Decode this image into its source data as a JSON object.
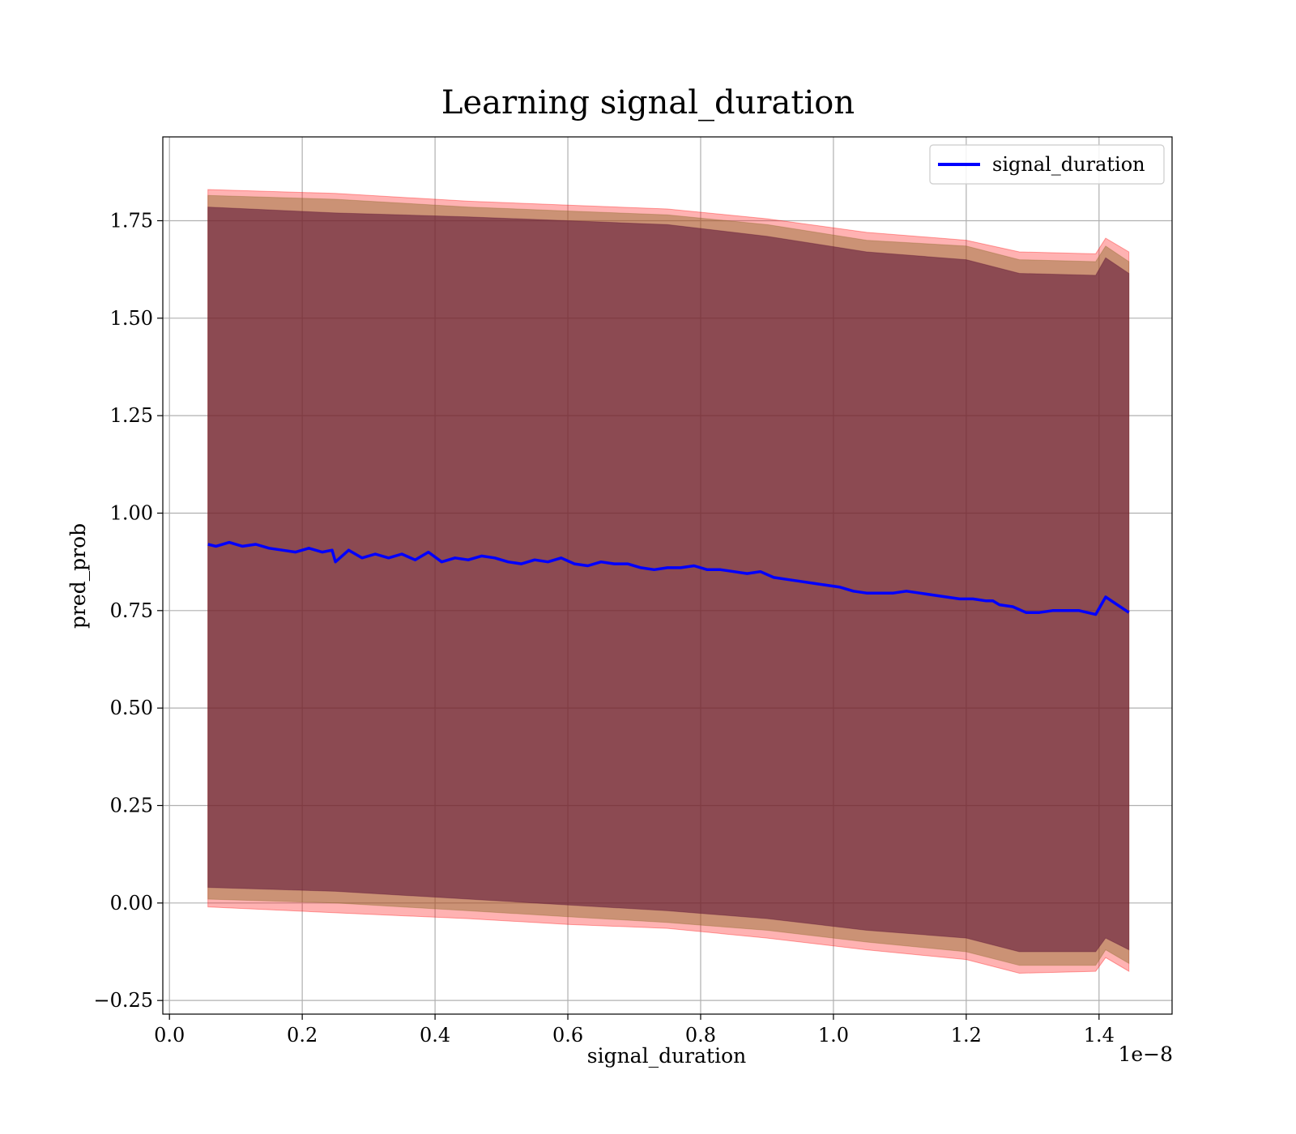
{
  "chart_data": {
    "type": "line",
    "title": "Learning signal_duration",
    "xlabel": "signal_duration",
    "ylabel": "pred_prob",
    "x_offset_label": "1e−8",
    "xlim": [
      -0.01,
      1.51
    ],
    "ylim": [
      -0.285,
      1.965
    ],
    "x_ticks": [
      0.0,
      0.2,
      0.4,
      0.6,
      0.8,
      1.0,
      1.2,
      1.4
    ],
    "x_tick_labels": [
      "0.0",
      "0.2",
      "0.4",
      "0.6",
      "0.8",
      "1.0",
      "1.2",
      "1.4"
    ],
    "y_ticks": [
      -0.25,
      0.0,
      0.25,
      0.5,
      0.75,
      1.0,
      1.25,
      1.5,
      1.75
    ],
    "y_tick_labels": [
      "−0.25",
      "0.00",
      "0.25",
      "0.50",
      "0.75",
      "1.00",
      "1.25",
      "1.50",
      "1.75"
    ],
    "grid": true,
    "legend_position": "top-right",
    "colors": {
      "line": "#0000ff",
      "outer_band": "#ff0000",
      "middle_band": "#8b6b2a",
      "inner_band": "#5a0f35",
      "grid": "#b0b0b0"
    },
    "series": [
      {
        "name": "signal_duration",
        "x": [
          0.058,
          0.07,
          0.09,
          0.11,
          0.13,
          0.15,
          0.17,
          0.19,
          0.21,
          0.23,
          0.245,
          0.25,
          0.27,
          0.29,
          0.31,
          0.33,
          0.35,
          0.37,
          0.39,
          0.41,
          0.43,
          0.45,
          0.47,
          0.49,
          0.51,
          0.53,
          0.55,
          0.57,
          0.59,
          0.61,
          0.63,
          0.65,
          0.67,
          0.69,
          0.71,
          0.73,
          0.75,
          0.77,
          0.79,
          0.81,
          0.83,
          0.85,
          0.87,
          0.89,
          0.91,
          0.93,
          0.95,
          0.97,
          0.99,
          1.01,
          1.03,
          1.05,
          1.07,
          1.09,
          1.11,
          1.13,
          1.15,
          1.17,
          1.19,
          1.21,
          1.23,
          1.24,
          1.25,
          1.27,
          1.29,
          1.31,
          1.33,
          1.35,
          1.37,
          1.395,
          1.41,
          1.445
        ],
        "y": [
          0.92,
          0.915,
          0.925,
          0.915,
          0.92,
          0.91,
          0.905,
          0.9,
          0.91,
          0.9,
          0.905,
          0.875,
          0.905,
          0.885,
          0.895,
          0.885,
          0.895,
          0.88,
          0.9,
          0.875,
          0.885,
          0.88,
          0.89,
          0.885,
          0.875,
          0.87,
          0.88,
          0.875,
          0.885,
          0.87,
          0.865,
          0.875,
          0.87,
          0.87,
          0.86,
          0.855,
          0.86,
          0.86,
          0.865,
          0.855,
          0.855,
          0.85,
          0.845,
          0.85,
          0.835,
          0.83,
          0.825,
          0.82,
          0.815,
          0.81,
          0.8,
          0.795,
          0.795,
          0.795,
          0.8,
          0.795,
          0.79,
          0.785,
          0.78,
          0.78,
          0.775,
          0.775,
          0.765,
          0.76,
          0.745,
          0.745,
          0.75,
          0.75,
          0.75,
          0.74,
          0.785,
          0.745
        ]
      }
    ],
    "bands": [
      {
        "x": [
          0.058,
          0.25,
          0.45,
          0.6,
          0.75,
          0.9,
          1.05,
          1.2,
          1.28,
          1.395,
          1.41,
          1.445
        ],
        "upper": [
          1.83,
          1.82,
          1.8,
          1.79,
          1.78,
          1.755,
          1.72,
          1.7,
          1.67,
          1.665,
          1.705,
          1.67
        ],
        "lower": [
          -0.01,
          -0.025,
          -0.04,
          -0.055,
          -0.065,
          -0.09,
          -0.12,
          -0.145,
          -0.18,
          -0.175,
          -0.14,
          -0.175
        ]
      },
      {
        "x": [
          0.058,
          0.25,
          0.45,
          0.6,
          0.75,
          0.9,
          1.05,
          1.2,
          1.28,
          1.395,
          1.41,
          1.445
        ],
        "upper": [
          1.815,
          1.805,
          1.785,
          1.775,
          1.765,
          1.74,
          1.7,
          1.685,
          1.65,
          1.645,
          1.685,
          1.645
        ],
        "lower": [
          0.01,
          0.0,
          -0.02,
          -0.035,
          -0.05,
          -0.07,
          -0.1,
          -0.125,
          -0.16,
          -0.16,
          -0.12,
          -0.155
        ]
      },
      {
        "x": [
          0.058,
          0.25,
          0.45,
          0.6,
          0.75,
          0.9,
          1.05,
          1.2,
          1.28,
          1.395,
          1.41,
          1.445
        ],
        "upper": [
          1.785,
          1.77,
          1.76,
          1.75,
          1.74,
          1.71,
          1.67,
          1.65,
          1.615,
          1.61,
          1.655,
          1.615
        ],
        "lower": [
          0.04,
          0.03,
          0.01,
          -0.005,
          -0.02,
          -0.04,
          -0.07,
          -0.09,
          -0.125,
          -0.125,
          -0.09,
          -0.12
        ]
      }
    ]
  }
}
